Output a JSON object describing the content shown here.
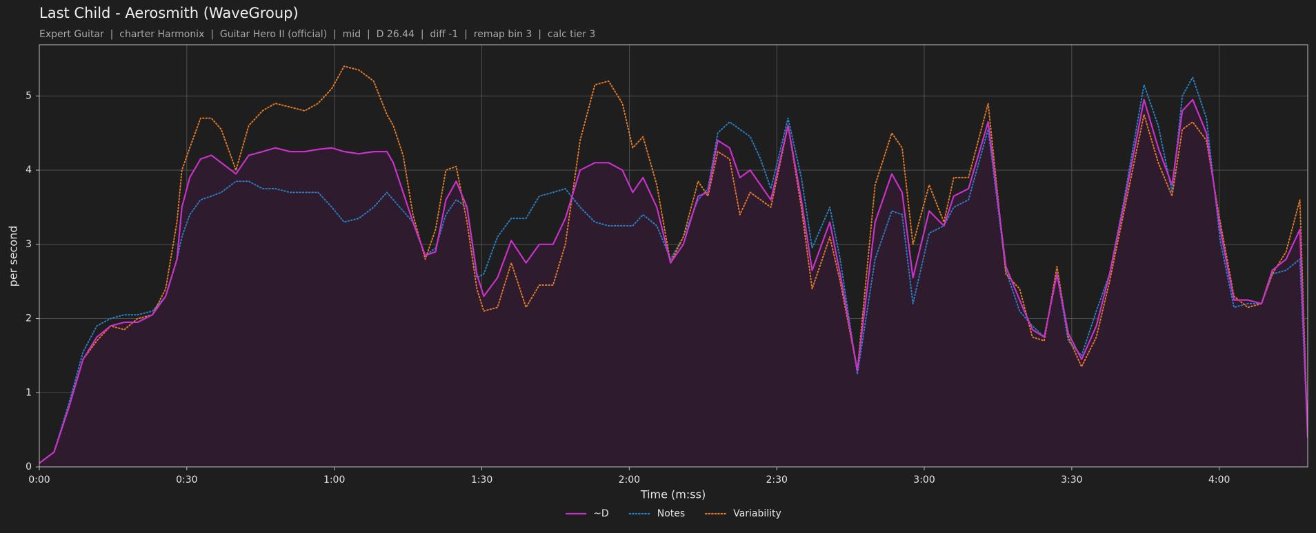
{
  "chart_data": {
    "type": "line",
    "title": "Last Child - Aerosmith (WaveGroup)",
    "subtitle": "Expert Guitar  |  charter Harmonix  |  Guitar Hero II (official)  |  mid  |  D 26.44  |  diff -1  |  remap bin 3  |  calc tier 3",
    "x_label": "Time (m:ss)",
    "y_label": "per second",
    "xlim": [
      0,
      258
    ],
    "ylim": [
      0,
      5.69
    ],
    "xticks": [
      {
        "value": 0,
        "label": "0:00"
      },
      {
        "value": 30,
        "label": "0:30"
      },
      {
        "value": 60,
        "label": "1:00"
      },
      {
        "value": 90,
        "label": "1:30"
      },
      {
        "value": 120,
        "label": "2:00"
      },
      {
        "value": 150,
        "label": "2:30"
      },
      {
        "value": 180,
        "label": "3:00"
      },
      {
        "value": 210,
        "label": "3:30"
      },
      {
        "value": 240,
        "label": "4:00"
      }
    ],
    "yticks": [
      0,
      1,
      2,
      3,
      4,
      5
    ],
    "grid": true,
    "legend": "bottom",
    "x": [
      0,
      3,
      6,
      8.9,
      11.7,
      14.5,
      17.3,
      20,
      23,
      25.7,
      28,
      29,
      30.6,
      32.8,
      35,
      37,
      40,
      42.6,
      45.4,
      48,
      51,
      54,
      56.7,
      59.5,
      62,
      65,
      68,
      70.7,
      72,
      74,
      76,
      78.5,
      80.6,
      82.7,
      84.8,
      87,
      89,
      90.4,
      93.2,
      96,
      99,
      101.7,
      104.5,
      107,
      110,
      113,
      115.8,
      118.6,
      120.7,
      122.8,
      125.6,
      128.4,
      131,
      134,
      136,
      138,
      140.4,
      142.5,
      144.6,
      146.7,
      148.8,
      152.3,
      155,
      157.2,
      160.8,
      162.9,
      166.4,
      170,
      173.4,
      175.5,
      177.7,
      181,
      184,
      186,
      189,
      193,
      196.6,
      199.4,
      202,
      204.4,
      207,
      209.3,
      212,
      215,
      217.7,
      220.5,
      224.7,
      227.6,
      230.4,
      232.5,
      234.6,
      237.4,
      240.2,
      243,
      245.8,
      248.6,
      250.8,
      253.6,
      256.4,
      258
    ],
    "series": [
      {
        "name": "~D",
        "color": "#c832c8",
        "style": "solid",
        "fill": "#2e1b2e",
        "values": [
          0.05,
          0.2,
          0.8,
          1.45,
          1.75,
          1.9,
          1.95,
          1.95,
          2.05,
          2.3,
          2.8,
          3.5,
          3.9,
          4.15,
          4.2,
          4.1,
          3.95,
          4.2,
          4.25,
          4.3,
          4.25,
          4.25,
          4.28,
          4.3,
          4.25,
          4.22,
          4.25,
          4.25,
          4.1,
          3.7,
          3.3,
          2.85,
          2.9,
          3.6,
          3.85,
          3.5,
          2.6,
          2.3,
          2.55,
          3.05,
          2.75,
          3.0,
          3.0,
          3.35,
          4.0,
          4.1,
          4.1,
          4.0,
          3.7,
          3.9,
          3.5,
          2.75,
          3.0,
          3.65,
          3.7,
          4.4,
          4.3,
          3.9,
          4.0,
          3.8,
          3.6,
          4.6,
          3.6,
          2.65,
          3.3,
          2.6,
          1.3,
          3.3,
          3.95,
          3.7,
          2.55,
          3.45,
          3.25,
          3.65,
          3.75,
          4.65,
          2.7,
          2.25,
          1.85,
          1.75,
          2.6,
          1.8,
          1.45,
          1.9,
          2.6,
          3.5,
          4.95,
          4.3,
          3.8,
          4.8,
          4.95,
          4.5,
          3.2,
          2.25,
          2.25,
          2.2,
          2.65,
          2.8,
          3.2,
          0.4
        ]
      },
      {
        "name": "Notes",
        "color": "#2a7fc0",
        "style": "dotted",
        "values": [
          0.05,
          0.2,
          0.85,
          1.55,
          1.9,
          2.0,
          2.05,
          2.05,
          2.1,
          2.3,
          2.8,
          3.1,
          3.4,
          3.6,
          3.65,
          3.7,
          3.85,
          3.85,
          3.75,
          3.75,
          3.7,
          3.7,
          3.7,
          3.5,
          3.3,
          3.35,
          3.5,
          3.7,
          3.6,
          3.45,
          3.3,
          2.85,
          2.95,
          3.4,
          3.6,
          3.5,
          2.55,
          2.6,
          3.1,
          3.35,
          3.35,
          3.65,
          3.7,
          3.75,
          3.5,
          3.3,
          3.25,
          3.25,
          3.25,
          3.4,
          3.25,
          2.8,
          3.1,
          3.6,
          3.75,
          4.5,
          4.65,
          4.55,
          4.45,
          4.15,
          3.75,
          4.7,
          3.9,
          2.95,
          3.5,
          2.8,
          1.25,
          2.8,
          3.45,
          3.4,
          2.2,
          3.15,
          3.25,
          3.5,
          3.6,
          4.55,
          2.65,
          2.1,
          1.9,
          1.75,
          2.6,
          1.7,
          1.5,
          2.1,
          2.6,
          3.55,
          5.15,
          4.6,
          3.7,
          5.0,
          5.25,
          4.7,
          3.05,
          2.15,
          2.2,
          2.2,
          2.6,
          2.65,
          2.8,
          0.4
        ]
      },
      {
        "name": "Variability",
        "color": "#e07a28",
        "style": "dotted",
        "values": [
          0.05,
          0.2,
          0.8,
          1.45,
          1.7,
          1.9,
          1.85,
          2.0,
          2.05,
          2.4,
          3.3,
          4.0,
          4.3,
          4.7,
          4.7,
          4.55,
          4.0,
          4.6,
          4.8,
          4.9,
          4.85,
          4.8,
          4.9,
          5.1,
          5.4,
          5.35,
          5.2,
          4.75,
          4.6,
          4.2,
          3.4,
          2.8,
          3.2,
          4.0,
          4.05,
          3.3,
          2.4,
          2.1,
          2.15,
          2.75,
          2.15,
          2.45,
          2.45,
          3.0,
          4.4,
          5.15,
          5.2,
          4.9,
          4.3,
          4.45,
          3.8,
          2.75,
          3.1,
          3.85,
          3.65,
          4.25,
          4.15,
          3.4,
          3.7,
          3.6,
          3.5,
          4.6,
          3.5,
          2.4,
          3.1,
          2.5,
          1.3,
          3.8,
          4.5,
          4.3,
          3.0,
          3.8,
          3.3,
          3.9,
          3.9,
          4.9,
          2.6,
          2.4,
          1.75,
          1.7,
          2.7,
          1.75,
          1.35,
          1.75,
          2.5,
          3.4,
          4.75,
          4.1,
          3.65,
          4.55,
          4.65,
          4.4,
          3.3,
          2.3,
          2.15,
          2.2,
          2.6,
          2.9,
          3.6,
          0.4
        ]
      }
    ]
  }
}
